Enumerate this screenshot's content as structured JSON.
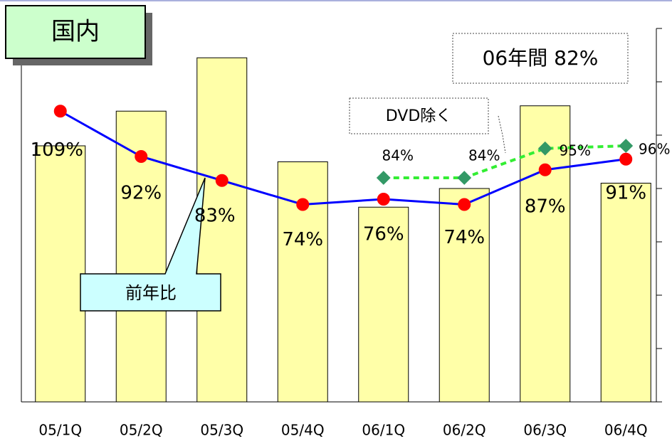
{
  "chart_data": {
    "type": "bar_line",
    "title": "国内",
    "annotations": {
      "annual": "06年間 82%",
      "dvd": "DVD除く",
      "yoy": "前年比"
    },
    "categories": [
      "05/1Q",
      "05/2Q",
      "05/3Q",
      "05/4Q",
      "06/1Q",
      "06/2Q",
      "06/3Q",
      "06/4Q"
    ],
    "bars": {
      "color": "#ffffa8",
      "values": [
        96,
        109,
        129,
        90,
        73,
        80,
        111,
        82
      ]
    },
    "ylim": [
      0,
      140
    ],
    "series": [
      {
        "color": "#0000ff",
        "marker_color": "#ff0000",
        "axis": "y2",
        "values": [
          109,
          92,
          83,
          74,
          76,
          74,
          87,
          91
        ],
        "value_labels": [
          "109%",
          "92%",
          "83%",
          "74%",
          "76%",
          "74%",
          "87%",
          "91%"
        ]
      },
      {
        "color": "#33ee33",
        "marker_color": "#339966",
        "axis": "y2",
        "values": [
          null,
          null,
          null,
          null,
          84,
          84,
          95,
          96
        ],
        "value_labels": [
          null,
          null,
          null,
          null,
          "84%",
          "84%",
          "95%",
          "96%"
        ]
      }
    ],
    "y2lim": [
      0,
      140
    ],
    "y2ticks": [
      0,
      20,
      40,
      60,
      80,
      100,
      120,
      140
    ]
  }
}
